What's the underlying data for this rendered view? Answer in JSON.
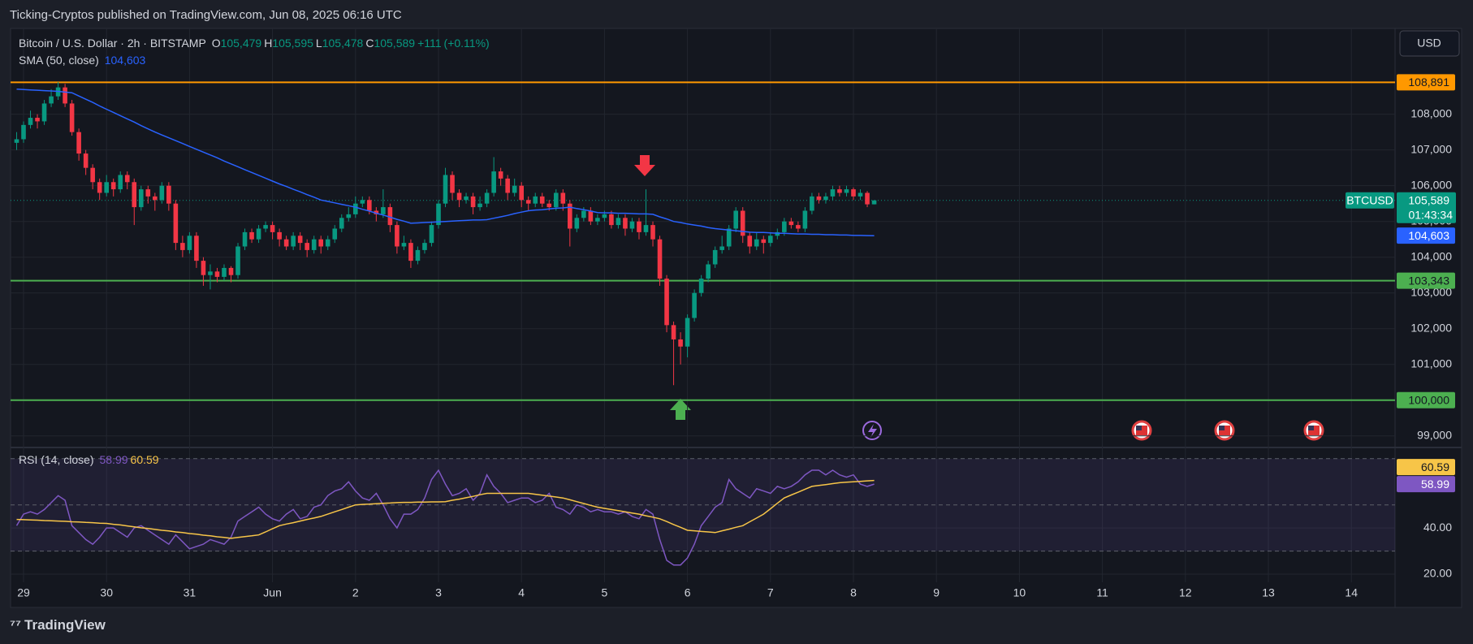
{
  "header": {
    "publisher": "Ticking-Cryptos published on TradingView.com, Jun 08, 2025 06:16 UTC"
  },
  "chart_data": {
    "type": "candlestick",
    "title": "Bitcoin / U.S. Dollar · 2h · BITSTAMP",
    "legend_values": {
      "labels": [
        "O",
        "H",
        "L",
        "C"
      ],
      "values": [
        105479,
        105595,
        105478,
        105589
      ],
      "value_labels": [
        "105,479",
        "105,595",
        "105,478",
        "105,589"
      ]
    },
    "change": {
      "value": 111,
      "label": "+111"
    },
    "change_pct": {
      "value": 0.11,
      "label": "(+0.11%)"
    },
    "currency": "USD",
    "symbol": "BTCUSD",
    "countdown": "01:43:34",
    "up_color": "#089981",
    "down_color": "#f23645",
    "ylim": [
      98700,
      110400
    ],
    "yticks": [
      {
        "value": 99000,
        "label": "99,000"
      },
      {
        "value": 100000,
        "label": "100,000"
      },
      {
        "value": 101000,
        "label": "101,000"
      },
      {
        "value": 102000,
        "label": "102,000"
      },
      {
        "value": 103000,
        "label": "103,000"
      },
      {
        "value": 104000,
        "label": "104,000"
      },
      {
        "value": 105000,
        "label": "105,000"
      },
      {
        "value": 106000,
        "label": "106,000"
      },
      {
        "value": 107000,
        "label": "107,000"
      },
      {
        "value": 108000,
        "label": "108,000"
      }
    ],
    "xticks": [
      "29",
      "30",
      "31",
      "Jun",
      "2",
      "3",
      "4",
      "5",
      "6",
      "7",
      "8",
      "9",
      "10",
      "11",
      "12",
      "13",
      "14"
    ],
    "grid": true,
    "candles": [
      [
        107200,
        107500,
        107000,
        107300
      ],
      [
        107300,
        107800,
        107200,
        107700
      ],
      [
        107700,
        108100,
        107600,
        107900
      ],
      [
        107900,
        108000,
        107600,
        107800
      ],
      [
        107800,
        108400,
        107700,
        108300
      ],
      [
        108300,
        108700,
        108200,
        108500
      ],
      [
        108500,
        108900,
        108400,
        108750
      ],
      [
        108750,
        108850,
        108200,
        108300
      ],
      [
        108300,
        108400,
        107400,
        107500
      ],
      [
        107500,
        107600,
        106700,
        106900
      ],
      [
        106900,
        107000,
        106300,
        106500
      ],
      [
        106500,
        106600,
        105900,
        106100
      ],
      [
        106100,
        106200,
        105600,
        105800
      ],
      [
        105800,
        106300,
        105700,
        106100
      ],
      [
        106100,
        106200,
        105700,
        105900
      ],
      [
        105900,
        106400,
        105800,
        106300
      ],
      [
        106300,
        106400,
        105900,
        106100
      ],
      [
        106100,
        106200,
        104900,
        105400
      ],
      [
        105400,
        106000,
        105300,
        105900
      ],
      [
        105900,
        106000,
        105500,
        105700
      ],
      [
        105700,
        105800,
        105300,
        105600
      ],
      [
        105600,
        106100,
        105500,
        106000
      ],
      [
        106000,
        106100,
        105300,
        105500
      ],
      [
        105500,
        105600,
        104200,
        104400
      ],
      [
        104400,
        104600,
        104000,
        104200
      ],
      [
        104200,
        104700,
        104100,
        104600
      ],
      [
        104600,
        104700,
        103700,
        103900
      ],
      [
        103900,
        104000,
        103200,
        103500
      ],
      [
        103500,
        103800,
        103100,
        103600
      ],
      [
        103600,
        103700,
        103300,
        103450
      ],
      [
        103450,
        103800,
        103350,
        103700
      ],
      [
        103700,
        103750,
        103300,
        103500
      ],
      [
        103500,
        104400,
        103400,
        104300
      ],
      [
        104300,
        104800,
        104200,
        104700
      ],
      [
        104700,
        104800,
        104400,
        104500
      ],
      [
        104500,
        104900,
        104400,
        104800
      ],
      [
        104800,
        105000,
        104700,
        104900
      ],
      [
        104900,
        105000,
        104500,
        104700
      ],
      [
        104700,
        104800,
        104300,
        104500
      ],
      [
        104500,
        104600,
        104200,
        104300
      ],
      [
        104300,
        104700,
        104200,
        104600
      ],
      [
        104600,
        104700,
        104200,
        104400
      ],
      [
        104400,
        104500,
        104000,
        104200
      ],
      [
        104200,
        104600,
        104100,
        104500
      ],
      [
        104500,
        104600,
        104100,
        104300
      ],
      [
        104300,
        104600,
        104200,
        104500
      ],
      [
        104500,
        104900,
        104400,
        104800
      ],
      [
        104800,
        105200,
        104700,
        105100
      ],
      [
        105100,
        105400,
        105000,
        105200
      ],
      [
        105200,
        105700,
        105100,
        105500
      ],
      [
        105500,
        105700,
        105400,
        105600
      ],
      [
        105600,
        105700,
        105200,
        105300
      ],
      [
        105300,
        105400,
        105000,
        105200
      ],
      [
        105200,
        105900,
        105100,
        105400
      ],
      [
        105400,
        105500,
        104700,
        104900
      ],
      [
        104900,
        105000,
        104100,
        104300
      ],
      [
        104300,
        104600,
        104200,
        104400
      ],
      [
        104400,
        104500,
        103700,
        103900
      ],
      [
        103900,
        104300,
        103800,
        104200
      ],
      [
        104200,
        104500,
        104100,
        104400
      ],
      [
        104400,
        105000,
        104300,
        104900
      ],
      [
        104900,
        105600,
        104800,
        105500
      ],
      [
        105500,
        106500,
        105400,
        106300
      ],
      [
        106300,
        106400,
        105600,
        105800
      ],
      [
        105800,
        105900,
        105400,
        105600
      ],
      [
        105600,
        105800,
        105500,
        105700
      ],
      [
        105700,
        105800,
        105200,
        105400
      ],
      [
        105400,
        105700,
        105300,
        105500
      ],
      [
        105500,
        105900,
        105400,
        105800
      ],
      [
        105800,
        106800,
        105700,
        106400
      ],
      [
        106400,
        106500,
        106000,
        106200
      ],
      [
        106200,
        106300,
        105600,
        105800
      ],
      [
        105800,
        106200,
        105700,
        106000
      ],
      [
        106000,
        106100,
        105400,
        105600
      ],
      [
        105600,
        105700,
        105300,
        105500
      ],
      [
        105500,
        105800,
        105400,
        105700
      ],
      [
        105700,
        105800,
        105400,
        105500
      ],
      [
        105500,
        105600,
        105300,
        105400
      ],
      [
        105400,
        105900,
        105300,
        105800
      ],
      [
        105800,
        105900,
        105300,
        105500
      ],
      [
        105500,
        105600,
        104300,
        104800
      ],
      [
        104800,
        105200,
        104700,
        105100
      ],
      [
        105100,
        105400,
        105000,
        105300
      ],
      [
        105300,
        105400,
        104900,
        105000
      ],
      [
        105000,
        105200,
        104900,
        105100
      ],
      [
        105100,
        105300,
        105000,
        105200
      ],
      [
        105200,
        105300,
        104800,
        104900
      ],
      [
        104900,
        105200,
        104800,
        105100
      ],
      [
        105100,
        105200,
        104600,
        104800
      ],
      [
        104800,
        105100,
        104700,
        105000
      ],
      [
        105000,
        105100,
        104500,
        104700
      ],
      [
        104700,
        105900,
        104600,
        104900
      ],
      [
        104900,
        105000,
        104300,
        104500
      ],
      [
        104500,
        104600,
        103200,
        103400
      ],
      [
        103400,
        103500,
        101900,
        102100
      ],
      [
        102100,
        102200,
        100420,
        101700
      ],
      [
        101700,
        101900,
        101000,
        101500
      ],
      [
        101500,
        102400,
        101200,
        102300
      ],
      [
        102300,
        103100,
        102200,
        103000
      ],
      [
        103000,
        103500,
        102900,
        103400
      ],
      [
        103400,
        103900,
        103300,
        103800
      ],
      [
        103800,
        104300,
        103700,
        104200
      ],
      [
        104200,
        104600,
        104100,
        104300
      ],
      [
        104300,
        104900,
        104200,
        104800
      ],
      [
        104800,
        105400,
        104700,
        105300
      ],
      [
        105300,
        105400,
        104400,
        104600
      ],
      [
        104600,
        104700,
        104100,
        104300
      ],
      [
        104300,
        104700,
        104200,
        104500
      ],
      [
        104500,
        104600,
        104100,
        104400
      ],
      [
        104400,
        104700,
        104300,
        104600
      ],
      [
        104600,
        104800,
        104500,
        104700
      ],
      [
        104700,
        105100,
        104600,
        105000
      ],
      [
        105000,
        105100,
        104800,
        104900
      ],
      [
        104900,
        105000,
        104700,
        104800
      ],
      [
        104800,
        105400,
        104700,
        105300
      ],
      [
        105300,
        105800,
        105200,
        105700
      ],
      [
        105700,
        105800,
        105500,
        105600
      ],
      [
        105600,
        105800,
        105500,
        105700
      ],
      [
        105700,
        106000,
        105600,
        105900
      ],
      [
        105900,
        106000,
        105700,
        105800
      ],
      [
        105800,
        106000,
        105700,
        105900
      ],
      [
        105900,
        105950,
        105600,
        105700
      ],
      [
        105700,
        105900,
        105600,
        105800
      ],
      [
        105800,
        105850,
        105400,
        105479
      ],
      [
        105479,
        105595,
        105478,
        105589
      ]
    ],
    "series": [
      {
        "name": "SMA (50, close)",
        "color": "#2962ff",
        "last_label": "104,603",
        "values": [
          108700,
          108690,
          108680,
          108670,
          108660,
          108650,
          108640,
          108620,
          108600,
          108510,
          108420,
          108330,
          108230,
          108140,
          108050,
          107960,
          107870,
          107780,
          107680,
          107590,
          107500,
          107420,
          107340,
          107260,
          107180,
          107100,
          107020,
          106940,
          106860,
          106780,
          106690,
          106610,
          106530,
          106450,
          106370,
          106290,
          106210,
          106130,
          106050,
          105980,
          105900,
          105830,
          105750,
          105680,
          105600,
          105560,
          105520,
          105480,
          105440,
          105400,
          105340,
          105290,
          105230,
          105180,
          105120,
          105060,
          105010,
          104950,
          104960,
          104970,
          104980,
          104990,
          105000,
          105010,
          105020,
          105030,
          105040,
          105040,
          105050,
          105090,
          105130,
          105170,
          105220,
          105260,
          105300,
          105320,
          105330,
          105350,
          105370,
          105380,
          105400,
          105360,
          105330,
          105290,
          105250,
          105240,
          105240,
          105230,
          105230,
          105220,
          105210,
          105210,
          105200,
          105130,
          105070,
          105000,
          104970,
          104930,
          104900,
          104870,
          104830,
          104800,
          104780,
          104760,
          104740,
          104720,
          104700,
          104690,
          104690,
          104680,
          104670,
          104670,
          104660,
          104650,
          104650,
          104640,
          104640,
          104630,
          104630,
          104620,
          104620,
          104610,
          104610,
          104605,
          104603
        ]
      }
    ],
    "hlines": [
      {
        "value": 108891,
        "label": "108,891",
        "color": "#ff9800"
      },
      {
        "value": 103343,
        "label": "103,343",
        "color": "#4caf50"
      },
      {
        "value": 100000,
        "label": "100,000",
        "color": "#4caf50"
      }
    ],
    "last_price": {
      "value": 105589,
      "label": "105,589"
    },
    "rsi": {
      "title": "RSI (14, close)",
      "ylim": [
        16.5,
        74.5
      ],
      "yticks": [
        {
          "value": 40,
          "label": "40.00"
        },
        {
          "value": 20,
          "label": "20.00"
        }
      ],
      "levels": [
        70,
        50,
        30
      ],
      "series": [
        {
          "color": "#7e57c2",
          "last_label": "58.99",
          "values": [
            41,
            46,
            47,
            46,
            48,
            51,
            54,
            52,
            41,
            38,
            35,
            33,
            36,
            40,
            40,
            38,
            36,
            40,
            41,
            39,
            37,
            35,
            33,
            37,
            34,
            31,
            32,
            33,
            35,
            34,
            33,
            36,
            43,
            45,
            47,
            49,
            46,
            44,
            43,
            46,
            48,
            44,
            45,
            49,
            50,
            54,
            56,
            57,
            60,
            56,
            53,
            52,
            55,
            50,
            44,
            40,
            46,
            46,
            48,
            53,
            61,
            65,
            59,
            54,
            55,
            57,
            52,
            55,
            63,
            58,
            55,
            51,
            52,
            53,
            53,
            51,
            52,
            55,
            49,
            48,
            46,
            50,
            49,
            47,
            48,
            47,
            47,
            46,
            47,
            45,
            44,
            48,
            46,
            35,
            26,
            24,
            24,
            27,
            33,
            41,
            45,
            49,
            51,
            61,
            57,
            55,
            53,
            57,
            56,
            55,
            58,
            57,
            58,
            60,
            63,
            65,
            65,
            63,
            65,
            63,
            62,
            63,
            59,
            58,
            58.99
          ]
        },
        {
          "color": "#f7c548",
          "last_label": "60.59",
          "values": [
            43.7,
            43.6,
            43.5,
            43.4,
            43.2,
            43.1,
            43.0,
            42.9,
            42.7,
            42.6,
            42.4,
            42.3,
            42.1,
            42.0,
            41.6,
            41.3,
            40.9,
            40.5,
            40.1,
            39.8,
            39.4,
            39.0,
            38.7,
            38.3,
            38.0,
            37.6,
            37.3,
            36.9,
            36.6,
            36.2,
            35.9,
            35.5,
            35.9,
            36.3,
            36.6,
            37.0,
            38.3,
            39.7,
            41.0,
            41.7,
            42.3,
            43.0,
            43.7,
            44.3,
            45.0,
            46.0,
            47.0,
            48.0,
            49.0,
            50.0,
            50.2,
            50.3,
            50.5,
            50.7,
            50.8,
            51.0,
            51.1,
            51.1,
            51.2,
            51.2,
            51.3,
            51.3,
            51.4,
            52.0,
            52.5,
            53.1,
            53.7,
            54.4,
            55.0,
            55.0,
            55.0,
            55.0,
            55.0,
            55.0,
            55.0,
            54.6,
            54.2,
            53.8,
            53.4,
            53.0,
            52.2,
            51.4,
            50.6,
            49.8,
            49.0,
            48.5,
            48.0,
            47.5,
            47.0,
            46.5,
            46.0,
            45.3,
            44.7,
            44.0,
            42.8,
            41.5,
            40.3,
            39.0,
            38.8,
            38.5,
            38.3,
            38.0,
            38.8,
            39.5,
            40.3,
            41.0,
            42.7,
            44.3,
            46.0,
            48.3,
            50.7,
            53.0,
            54.3,
            55.5,
            56.8,
            58.0,
            58.4,
            58.8,
            59.2,
            59.6,
            59.8,
            60.0,
            60.2,
            60.4,
            60.59
          ]
        }
      ]
    }
  },
  "footer": {
    "brand": "TradingView"
  }
}
